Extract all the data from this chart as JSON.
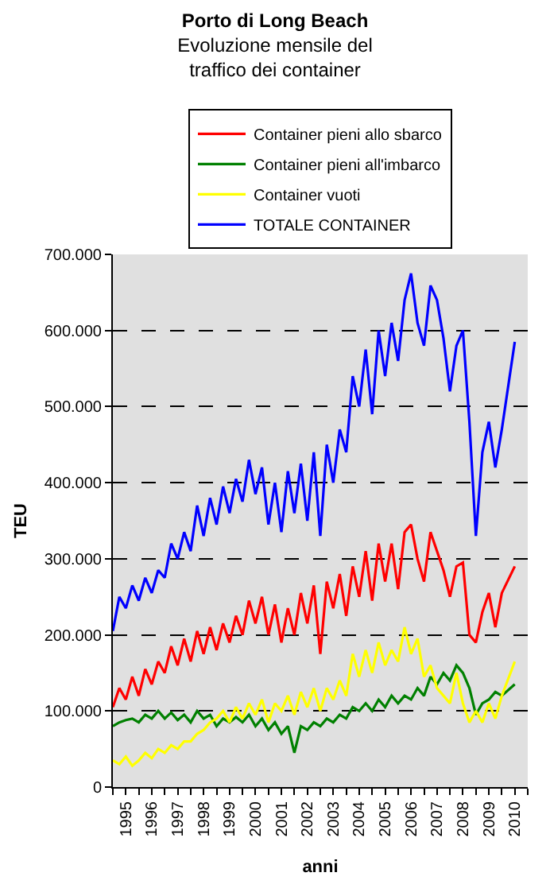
{
  "chart_data": {
    "type": "line",
    "title": "Porto di Long Beach",
    "subtitle": "Evoluzione mensile del traffico dei container",
    "xlabel": "anni",
    "ylabel": "TEU",
    "x": [
      1995.0,
      1995.25,
      1995.5,
      1995.75,
      1996.0,
      1996.25,
      1996.5,
      1996.75,
      1997.0,
      1997.25,
      1997.5,
      1997.75,
      1998.0,
      1998.25,
      1998.5,
      1998.75,
      1999.0,
      1999.25,
      1999.5,
      1999.75,
      2000.0,
      2000.25,
      2000.5,
      2000.75,
      2001.0,
      2001.25,
      2001.5,
      2001.75,
      2002.0,
      2002.25,
      2002.5,
      2002.75,
      2003.0,
      2003.25,
      2003.5,
      2003.75,
      2004.0,
      2004.25,
      2004.5,
      2004.75,
      2005.0,
      2005.25,
      2005.5,
      2005.75,
      2006.0,
      2006.25,
      2006.5,
      2006.75,
      2007.0,
      2007.25,
      2007.5,
      2007.75,
      2008.0,
      2008.25,
      2008.5,
      2008.75,
      2009.0,
      2009.25,
      2009.5,
      2009.75,
      2010.0,
      2010.5
    ],
    "series": [
      {
        "name": "Container pieni allo sbarco",
        "color": "#ff0000",
        "values": [
          105000,
          130000,
          115000,
          145000,
          120000,
          155000,
          135000,
          165000,
          150000,
          185000,
          160000,
          195000,
          165000,
          205000,
          175000,
          210000,
          180000,
          215000,
          190000,
          225000,
          200000,
          245000,
          215000,
          250000,
          200000,
          240000,
          190000,
          235000,
          200000,
          255000,
          215000,
          265000,
          175000,
          270000,
          235000,
          280000,
          225000,
          290000,
          250000,
          310000,
          245000,
          320000,
          270000,
          320000,
          260000,
          335000,
          345000,
          300000,
          270000,
          335000,
          310000,
          285000,
          250000,
          290000,
          295000,
          200000,
          190000,
          230000,
          255000,
          210000,
          255000,
          290000
        ]
      },
      {
        "name": "Container pieni all'imbarco",
        "color": "#008000",
        "values": [
          80000,
          85000,
          88000,
          90000,
          85000,
          95000,
          90000,
          100000,
          90000,
          98000,
          88000,
          95000,
          85000,
          100000,
          90000,
          95000,
          80000,
          90000,
          85000,
          92000,
          85000,
          95000,
          80000,
          90000,
          75000,
          85000,
          70000,
          80000,
          45000,
          80000,
          75000,
          85000,
          80000,
          90000,
          85000,
          95000,
          90000,
          105000,
          100000,
          110000,
          100000,
          115000,
          105000,
          120000,
          110000,
          120000,
          115000,
          130000,
          120000,
          145000,
          135000,
          150000,
          140000,
          160000,
          150000,
          130000,
          95000,
          110000,
          115000,
          125000,
          120000,
          135000
        ]
      },
      {
        "name": "Container vuoti",
        "color": "#ffff00",
        "values": [
          35000,
          30000,
          40000,
          28000,
          35000,
          45000,
          38000,
          50000,
          45000,
          55000,
          50000,
          60000,
          60000,
          70000,
          75000,
          85000,
          90000,
          100000,
          85000,
          105000,
          90000,
          110000,
          95000,
          115000,
          85000,
          110000,
          100000,
          120000,
          95000,
          125000,
          105000,
          130000,
          100000,
          130000,
          115000,
          140000,
          120000,
          175000,
          145000,
          180000,
          150000,
          190000,
          160000,
          180000,
          165000,
          210000,
          175000,
          195000,
          145000,
          160000,
          130000,
          120000,
          110000,
          150000,
          110000,
          85000,
          100000,
          85000,
          110000,
          90000,
          120000,
          165000
        ]
      },
      {
        "name": "TOTALE CONTAINER",
        "color": "#0000ff",
        "values": [
          205000,
          250000,
          235000,
          265000,
          245000,
          275000,
          255000,
          285000,
          275000,
          320000,
          300000,
          335000,
          310000,
          370000,
          330000,
          380000,
          345000,
          395000,
          360000,
          405000,
          375000,
          430000,
          385000,
          420000,
          345000,
          400000,
          335000,
          415000,
          360000,
          425000,
          350000,
          440000,
          330000,
          450000,
          400000,
          470000,
          440000,
          540000,
          500000,
          575000,
          490000,
          600000,
          540000,
          610000,
          560000,
          640000,
          675000,
          610000,
          580000,
          659000,
          640000,
          590000,
          520000,
          580000,
          600000,
          480000,
          330000,
          440000,
          480000,
          420000,
          470000,
          585000
        ]
      }
    ],
    "xlim": [
      1995,
      2011
    ],
    "xticks": [
      {
        "value": 1995,
        "label": null
      },
      {
        "value": 1995.5,
        "label": "1995"
      },
      {
        "value": 1996,
        "label": null
      },
      {
        "value": 1996.5,
        "label": "1996"
      },
      {
        "value": 1997,
        "label": null
      },
      {
        "value": 1997.5,
        "label": "1997"
      },
      {
        "value": 1998,
        "label": null
      },
      {
        "value": 1998.5,
        "label": "1998"
      },
      {
        "value": 1999,
        "label": null
      },
      {
        "value": 1999.5,
        "label": "1999"
      },
      {
        "value": 2000,
        "label": null
      },
      {
        "value": 2000.5,
        "label": "2000"
      },
      {
        "value": 2001,
        "label": null
      },
      {
        "value": 2001.5,
        "label": "2001"
      },
      {
        "value": 2002,
        "label": null
      },
      {
        "value": 2002.5,
        "label": "2002"
      },
      {
        "value": 2003,
        "label": null
      },
      {
        "value": 2003.5,
        "label": "2003"
      },
      {
        "value": 2004,
        "label": null
      },
      {
        "value": 2004.5,
        "label": "2004"
      },
      {
        "value": 2005,
        "label": null
      },
      {
        "value": 2005.5,
        "label": "2005"
      },
      {
        "value": 2006,
        "label": null
      },
      {
        "value": 2006.5,
        "label": "2006"
      },
      {
        "value": 2007,
        "label": null
      },
      {
        "value": 2007.5,
        "label": "2007"
      },
      {
        "value": 2008,
        "label": null
      },
      {
        "value": 2008.5,
        "label": "2008"
      },
      {
        "value": 2009,
        "label": null
      },
      {
        "value": 2009.5,
        "label": "2009"
      },
      {
        "value": 2010,
        "label": null
      },
      {
        "value": 2010.5,
        "label": "2010"
      },
      {
        "value": 2011,
        "label": null
      }
    ],
    "ylim": [
      0,
      700000
    ],
    "yticks": [
      0,
      {
        "value": 100000,
        "label": "100.000"
      },
      {
        "value": 200000,
        "label": "200.000"
      },
      {
        "value": 300000,
        "label": "300.000"
      },
      {
        "value": 400000,
        "label": "400.000"
      },
      {
        "value": 500000,
        "label": "500.000"
      },
      {
        "value": 600000,
        "label": "600.000"
      },
      {
        "value": 700000,
        "label": "700.000"
      }
    ],
    "grid": "y",
    "legend": "top",
    "marker": "none",
    "line_style": "solid"
  }
}
